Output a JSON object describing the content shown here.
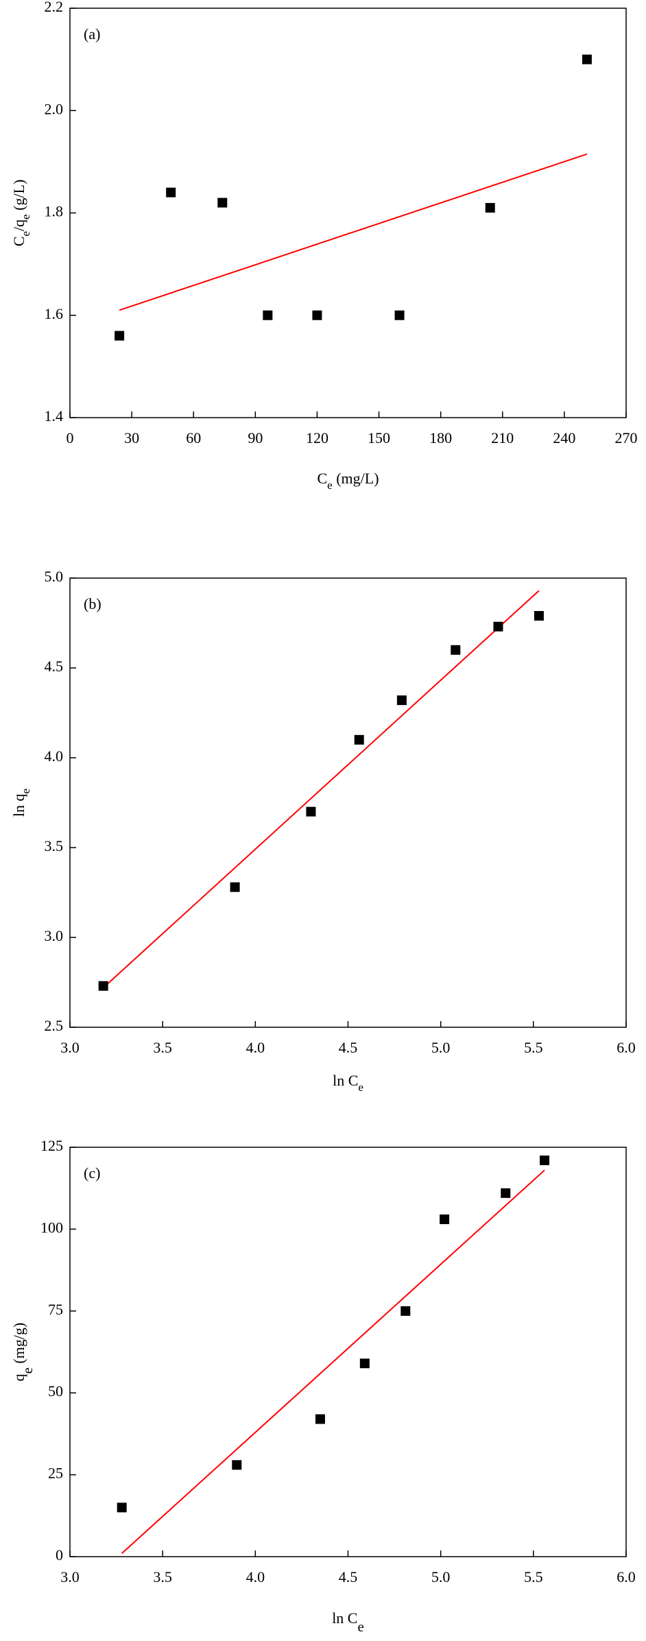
{
  "chart_data": [
    {
      "type": "scatter",
      "annotation": "(a)",
      "xlabel": [
        {
          "text": "C"
        },
        {
          "text": "e",
          "sub": true
        },
        {
          "text": " (mg/L)"
        }
      ],
      "ylabel": [
        {
          "text": "C"
        },
        {
          "text": "e",
          "sub": true
        },
        {
          "text": "/q"
        },
        {
          "text": "e",
          "sub": true
        },
        {
          "text": " (g/L)"
        }
      ],
      "xlim": [
        0,
        270
      ],
      "xticks": [
        0,
        30,
        60,
        90,
        120,
        150,
        180,
        210,
        240,
        270
      ],
      "ylim": [
        1.4,
        2.2
      ],
      "yticks": [
        1.4,
        1.6,
        1.8,
        {
          "value": 2,
          "label": "2.0"
        },
        2.2
      ],
      "x": [
        24,
        49,
        74,
        96,
        120,
        160,
        204,
        251
      ],
      "values": [
        1.56,
        1.84,
        1.82,
        1.6,
        1.6,
        1.6,
        1.81,
        2.1
      ],
      "color": "#000000",
      "fit": {
        "x": [
          24,
          251
        ],
        "values": [
          1.61,
          1.915
        ],
        "color": "#ff0000"
      }
    },
    {
      "type": "scatter",
      "annotation": "(b)",
      "xlabel": [
        {
          "text": "ln C"
        },
        {
          "text": "e",
          "sub": true
        }
      ],
      "ylabel": [
        {
          "text": "ln q"
        },
        {
          "text": "e",
          "sub": true
        }
      ],
      "xlim": [
        3,
        6
      ],
      "xticks": [
        {
          "value": 3,
          "label": "3.0"
        },
        3.5,
        {
          "value": 4,
          "label": "4.0"
        },
        4.5,
        {
          "value": 5,
          "label": "5.0"
        },
        5.5,
        {
          "value": 6,
          "label": "6.0"
        }
      ],
      "ylim": [
        2.5,
        5
      ],
      "yticks": [
        2.5,
        {
          "value": 3,
          "label": "3.0"
        },
        3.5,
        {
          "value": 4,
          "label": "4.0"
        },
        4.5,
        {
          "value": 5,
          "label": "5.0"
        }
      ],
      "x": [
        3.18,
        3.89,
        4.3,
        4.56,
        4.79,
        5.08,
        5.31,
        5.53
      ],
      "values": [
        2.73,
        3.28,
        3.7,
        4.1,
        4.32,
        4.6,
        4.73,
        4.79
      ],
      "color": "#000000",
      "fit": {
        "x": [
          3.18,
          5.53
        ],
        "values": [
          2.72,
          4.93
        ],
        "color": "#ff0000"
      }
    },
    {
      "type": "scatter",
      "annotation": "(c)",
      "xlabel": [
        {
          "text": "ln C"
        },
        {
          "text": "e",
          "sub": true
        }
      ],
      "ylabel": [
        {
          "text": "q"
        },
        {
          "text": "e",
          "sub": true
        },
        {
          "text": " (mg/g)"
        }
      ],
      "xlim": [
        3,
        6
      ],
      "xticks": [
        {
          "value": 3,
          "label": "3.0"
        },
        3.5,
        {
          "value": 4,
          "label": "4.0"
        },
        4.5,
        {
          "value": 5,
          "label": "5.0"
        },
        5.5,
        {
          "value": 6,
          "label": "6.0"
        }
      ],
      "ylim": [
        0,
        125
      ],
      "yticks": [
        0,
        25,
        50,
        75,
        100,
        125
      ],
      "x": [
        3.28,
        3.9,
        4.35,
        4.59,
        4.81,
        5.02,
        5.35,
        5.56
      ],
      "values": [
        15,
        28,
        42,
        59,
        75,
        103,
        111,
        121
      ],
      "color": "#000000",
      "fit": {
        "x": [
          3.28,
          5.56
        ],
        "values": [
          1,
          118
        ],
        "color": "#ff0000"
      }
    }
  ]
}
